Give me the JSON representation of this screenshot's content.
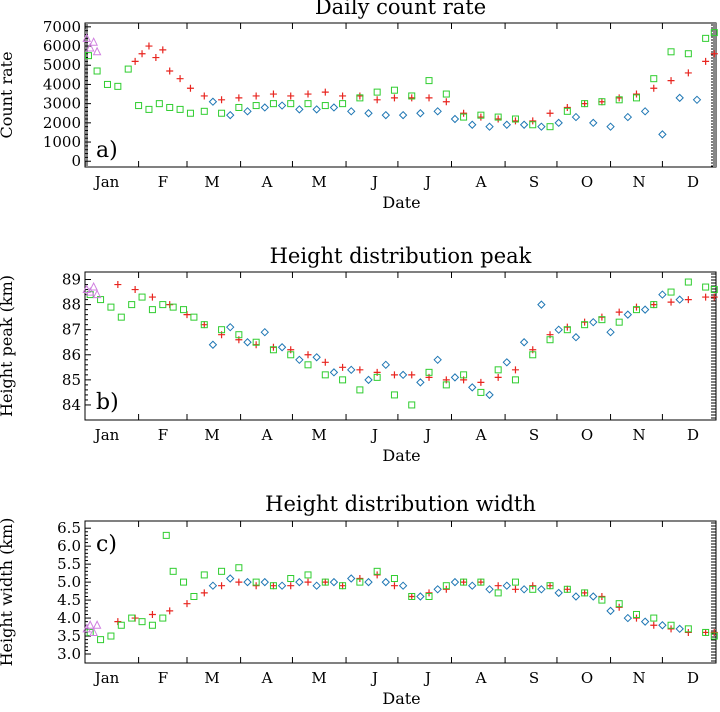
{
  "chart_data": [
    {
      "type": "scatter",
      "panel_label": "a)",
      "title": "Daily count rate",
      "xlabel": "Date",
      "ylabel": "Count rate",
      "x_tick_labels": [
        "Jan",
        "F",
        "M",
        "A",
        "M",
        "J",
        "J",
        "A",
        "S",
        "O",
        "N",
        "D"
      ],
      "y_ticks": [
        0,
        1000,
        2000,
        3000,
        4000,
        5000,
        6000,
        7000
      ],
      "ylim": [
        -300,
        7200
      ],
      "xlim": [
        1,
        366
      ],
      "x_unit": "day of year",
      "series": [
        {
          "marker": "plus",
          "color": "#e8251f",
          "x": [
            30,
            34,
            38,
            42,
            46,
            50,
            56,
            62,
            70,
            80,
            90,
            100,
            110,
            120,
            130,
            140,
            150,
            160,
            170,
            180,
            190,
            200,
            210,
            220,
            230,
            240,
            250,
            260,
            270,
            280,
            290,
            300,
            310,
            320,
            330,
            340,
            350,
            360,
            365
          ],
          "y": [
            5200,
            5600,
            6000,
            5400,
            5800,
            4700,
            4300,
            3800,
            3400,
            3200,
            3300,
            3400,
            3500,
            3400,
            3500,
            3600,
            3400,
            3400,
            3200,
            3300,
            3300,
            3300,
            3100,
            2500,
            2300,
            2200,
            2100,
            2100,
            2500,
            2800,
            3000,
            3100,
            3300,
            3500,
            3800,
            4200,
            4600,
            5200,
            5600
          ]
        },
        {
          "marker": "diamond",
          "color": "#1f77b4",
          "x": [
            75,
            85,
            95,
            105,
            115,
            125,
            135,
            145,
            155,
            165,
            175,
            185,
            195,
            205,
            215,
            225,
            235,
            245,
            255,
            265,
            275,
            285,
            295,
            305,
            315,
            325,
            335,
            345,
            355
          ],
          "y": [
            3100,
            2400,
            2600,
            2800,
            2900,
            2700,
            2700,
            2800,
            2600,
            2500,
            2400,
            2400,
            2500,
            2600,
            2200,
            1900,
            1800,
            1900,
            1900,
            1800,
            2000,
            2300,
            2000,
            1800,
            2300,
            2600,
            1400,
            3300,
            3200
          ]
        },
        {
          "marker": "square",
          "color": "#2fcd2f",
          "x": [
            3,
            8,
            14,
            20,
            26,
            32,
            38,
            44,
            50,
            56,
            62,
            70,
            80,
            90,
            100,
            110,
            120,
            130,
            140,
            150,
            160,
            170,
            180,
            190,
            200,
            210,
            220,
            230,
            240,
            250,
            260,
            270,
            280,
            290,
            300,
            310,
            320,
            330,
            340,
            350,
            360,
            365
          ],
          "y": [
            5500,
            4700,
            4000,
            3900,
            4800,
            2900,
            2700,
            3000,
            2800,
            2700,
            2500,
            2600,
            2500,
            2800,
            2900,
            3000,
            3000,
            3000,
            2900,
            3000,
            3300,
            3600,
            3700,
            3400,
            4200,
            3500,
            2300,
            2400,
            2300,
            2200,
            1900,
            1800,
            2600,
            3000,
            3100,
            3200,
            3300,
            4300,
            5700,
            5600,
            6400,
            6700
          ]
        },
        {
          "marker": "triangle",
          "color": "#d080e0",
          "x": [
            2,
            4,
            6,
            8
          ],
          "y": [
            6400,
            5900,
            6200,
            5700
          ]
        }
      ]
    },
    {
      "type": "scatter",
      "panel_label": "b)",
      "title": "Height distribution peak",
      "xlabel": "Date",
      "ylabel": "Height peak (km)",
      "x_tick_labels": [
        "Jan",
        "F",
        "M",
        "A",
        "M",
        "J",
        "J",
        "A",
        "S",
        "O",
        "N",
        "D"
      ],
      "y_ticks": [
        84,
        85,
        86,
        87,
        88,
        89
      ],
      "ylim": [
        83.4,
        89.3
      ],
      "xlim": [
        1,
        366
      ],
      "x_unit": "day of year",
      "series": [
        {
          "marker": "plus",
          "color": "#e8251f",
          "x": [
            20,
            30,
            40,
            50,
            60,
            70,
            80,
            90,
            100,
            110,
            120,
            130,
            140,
            150,
            160,
            170,
            180,
            190,
            200,
            210,
            220,
            230,
            240,
            250,
            260,
            270,
            280,
            290,
            300,
            310,
            320,
            330,
            340,
            350,
            360,
            365
          ],
          "y": [
            88.8,
            88.6,
            88.3,
            88.0,
            87.6,
            87.2,
            86.8,
            86.6,
            86.4,
            86.3,
            86.2,
            86.0,
            85.7,
            85.5,
            85.4,
            85.3,
            85.2,
            85.2,
            85.1,
            85.0,
            85.0,
            84.9,
            85.1,
            85.4,
            86.2,
            86.8,
            87.1,
            87.3,
            87.5,
            87.7,
            87.9,
            88.0,
            88.1,
            88.2,
            88.3,
            88.3
          ]
        },
        {
          "marker": "diamond",
          "color": "#1f77b4",
          "x": [
            75,
            85,
            95,
            105,
            115,
            125,
            135,
            145,
            155,
            165,
            175,
            185,
            195,
            205,
            215,
            225,
            235,
            245,
            255,
            265,
            275,
            285,
            295,
            305,
            315,
            325,
            335,
            345
          ],
          "y": [
            86.4,
            87.1,
            86.5,
            86.9,
            86.3,
            85.8,
            85.9,
            85.3,
            85.4,
            85.0,
            85.6,
            85.2,
            84.9,
            85.8,
            85.1,
            84.7,
            84.4,
            85.7,
            86.5,
            88.0,
            87.0,
            86.7,
            87.3,
            86.9,
            87.6,
            87.8,
            88.4,
            88.2
          ]
        },
        {
          "marker": "square",
          "color": "#2fcd2f",
          "x": [
            4,
            10,
            16,
            22,
            28,
            34,
            40,
            46,
            52,
            58,
            64,
            70,
            80,
            90,
            100,
            110,
            120,
            130,
            140,
            150,
            160,
            170,
            180,
            190,
            200,
            210,
            220,
            230,
            240,
            250,
            260,
            270,
            280,
            290,
            300,
            310,
            320,
            330,
            340,
            350,
            360,
            365
          ],
          "y": [
            88.4,
            88.2,
            87.9,
            87.5,
            88.0,
            88.3,
            87.8,
            88.0,
            87.9,
            87.8,
            87.5,
            87.2,
            87.0,
            86.8,
            86.5,
            86.2,
            86.0,
            85.6,
            85.2,
            85.0,
            84.6,
            85.1,
            84.4,
            84.0,
            85.3,
            84.8,
            85.2,
            84.5,
            85.4,
            85.0,
            86.0,
            86.6,
            87.0,
            87.2,
            87.4,
            87.3,
            87.8,
            88.0,
            88.5,
            88.9,
            88.7,
            88.6
          ]
        },
        {
          "marker": "triangle",
          "color": "#d080e0",
          "x": [
            2,
            4,
            6,
            8
          ],
          "y": [
            88.6,
            88.5,
            88.7,
            88.4
          ]
        }
      ]
    },
    {
      "type": "scatter",
      "panel_label": "c)",
      "title": "Height distribution width",
      "xlabel": "Date",
      "ylabel": "Height width (km)",
      "x_tick_labels": [
        "Jan",
        "F",
        "M",
        "A",
        "M",
        "J",
        "J",
        "A",
        "S",
        "O",
        "N",
        "D"
      ],
      "y_ticks": [
        3.0,
        3.5,
        4.0,
        4.5,
        5.0,
        5.5,
        6.0,
        6.5
      ],
      "ylim": [
        2.75,
        6.7
      ],
      "xlim": [
        1,
        366
      ],
      "x_unit": "day of year",
      "series": [
        {
          "marker": "plus",
          "color": "#e8251f",
          "x": [
            20,
            30,
            40,
            50,
            60,
            70,
            80,
            90,
            100,
            110,
            120,
            130,
            140,
            150,
            160,
            170,
            180,
            190,
            200,
            210,
            220,
            230,
            240,
            250,
            260,
            270,
            280,
            290,
            300,
            310,
            320,
            330,
            340,
            350,
            360,
            365
          ],
          "y": [
            3.9,
            4.0,
            4.1,
            4.2,
            4.4,
            4.7,
            4.9,
            5.0,
            4.9,
            4.9,
            4.9,
            5.0,
            5.0,
            4.9,
            5.1,
            5.2,
            4.9,
            4.6,
            4.7,
            4.8,
            5.0,
            5.0,
            4.9,
            4.8,
            4.9,
            4.9,
            4.8,
            4.7,
            4.6,
            4.3,
            4.0,
            3.8,
            3.7,
            3.6,
            3.6,
            3.6
          ]
        },
        {
          "marker": "diamond",
          "color": "#1f77b4",
          "x": [
            75,
            85,
            95,
            105,
            115,
            125,
            135,
            145,
            155,
            165,
            175,
            185,
            195,
            205,
            215,
            225,
            235,
            245,
            255,
            265,
            275,
            285,
            295,
            305,
            315,
            325,
            335,
            345
          ],
          "y": [
            4.9,
            5.1,
            5.0,
            5.0,
            4.9,
            5.0,
            4.9,
            5.0,
            5.1,
            5.0,
            5.0,
            4.9,
            4.6,
            4.8,
            5.0,
            4.9,
            4.8,
            4.9,
            4.8,
            4.8,
            4.7,
            4.6,
            4.6,
            4.2,
            4.0,
            3.9,
            3.8,
            3.7
          ]
        },
        {
          "marker": "square",
          "color": "#2fcd2f",
          "x": [
            4,
            10,
            16,
            22,
            28,
            34,
            40,
            46,
            48,
            52,
            58,
            64,
            70,
            80,
            90,
            100,
            110,
            120,
            130,
            140,
            150,
            160,
            170,
            180,
            190,
            200,
            210,
            220,
            230,
            240,
            250,
            260,
            270,
            280,
            290,
            300,
            310,
            320,
            330,
            340,
            350,
            360,
            365
          ],
          "y": [
            3.6,
            3.4,
            3.5,
            3.8,
            4.0,
            3.9,
            3.8,
            4.0,
            6.3,
            5.3,
            5.0,
            4.6,
            5.2,
            5.3,
            5.4,
            5.0,
            4.9,
            5.1,
            5.2,
            5.0,
            4.9,
            5.0,
            5.3,
            5.1,
            4.6,
            4.6,
            4.9,
            5.0,
            5.0,
            4.7,
            5.0,
            4.8,
            4.9,
            4.8,
            4.7,
            4.5,
            4.4,
            4.1,
            4.0,
            3.8,
            3.7,
            3.6,
            3.5
          ]
        },
        {
          "marker": "triangle",
          "color": "#d080e0",
          "x": [
            2,
            4,
            6,
            8
          ],
          "y": [
            3.7,
            3.8,
            3.6,
            3.8
          ]
        }
      ]
    }
  ]
}
